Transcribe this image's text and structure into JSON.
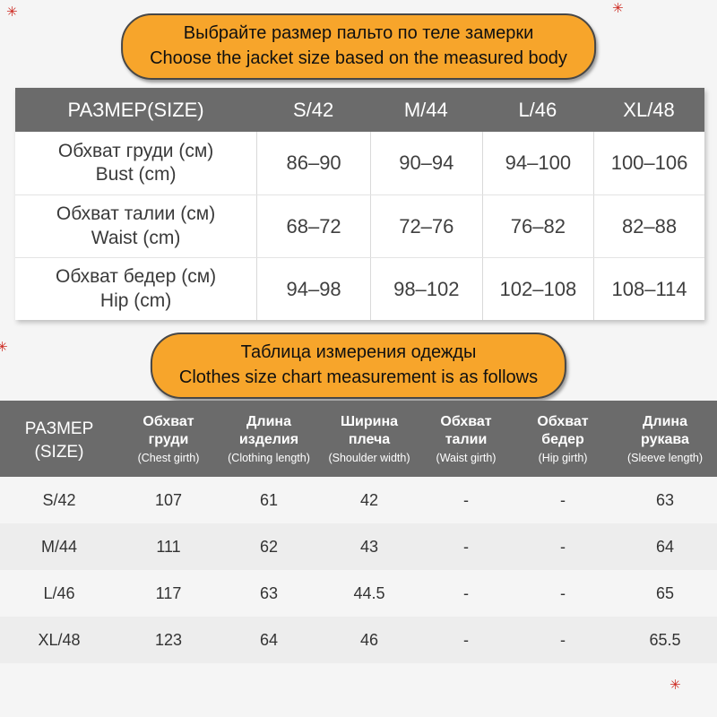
{
  "decor": {
    "mark_glyph": "✳"
  },
  "colors": {
    "banner_bg": "#f7a52b",
    "header_bg": "#6b6b6b",
    "zebra": "#ededed",
    "page_bg": "#f5f5f5"
  },
  "banner1": {
    "line_ru": "Выбрайте размер пальто по теле замерки",
    "line_en": "Choose the jacket size based on the measured body"
  },
  "banner2": {
    "line_ru": "Таблица измерения одежды",
    "line_en": "Clothes size chart measurement is as follows"
  },
  "body_table": {
    "header": [
      "РАЗМЕР(SIZE)",
      "S/42",
      "M/44",
      "L/46",
      "XL/48"
    ],
    "rows": [
      {
        "ru": "Обхват груди (см)",
        "en": "Bust (cm)",
        "values": [
          "86–90",
          "90–94",
          "94–100",
          "100–106"
        ]
      },
      {
        "ru": "Обхват талии (см)",
        "en": "Waist (cm)",
        "values": [
          "68–72",
          "72–76",
          "76–82",
          "82–88"
        ]
      },
      {
        "ru": "Обхват бедер (см)",
        "en": "Hip (cm)",
        "values": [
          "94–98",
          "98–102",
          "102–108",
          "108–114"
        ]
      }
    ]
  },
  "garment_table": {
    "header": [
      {
        "ru": "РАЗМЕР",
        "en": "(SIZE)"
      },
      {
        "ru": "Обхват груди",
        "en": "(Chest girth)"
      },
      {
        "ru": "Длина изделия",
        "en": "(Clothing length)"
      },
      {
        "ru": "Ширина плеча",
        "en": "(Shoulder width)"
      },
      {
        "ru": "Обхват талии",
        "en": "(Waist girth)"
      },
      {
        "ru": "Обхват бедер",
        "en": "(Hip girth)"
      },
      {
        "ru": "Длина рукава",
        "en": "(Sleeve length)"
      }
    ],
    "rows": [
      {
        "size": "S/42",
        "values": [
          "107",
          "61",
          "42",
          "-",
          "-",
          "63"
        ]
      },
      {
        "size": "M/44",
        "values": [
          "111",
          "62",
          "43",
          "-",
          "-",
          "64"
        ]
      },
      {
        "size": "L/46",
        "values": [
          "117",
          "63",
          "44.5",
          "-",
          "-",
          "65"
        ]
      },
      {
        "size": "XL/48",
        "values": [
          "123",
          "64",
          "46",
          "-",
          "-",
          "65.5"
        ]
      }
    ]
  }
}
